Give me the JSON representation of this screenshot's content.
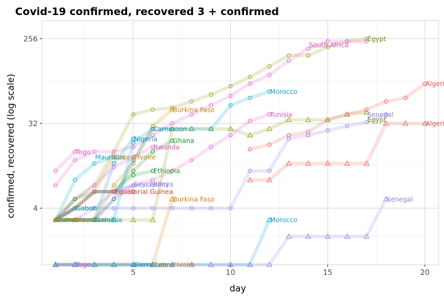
{
  "chart_data": {
    "type": "line",
    "title": "Covid-19 confirmed, recovered 3 + confirmed",
    "xlabel": "day",
    "ylabel": "confirmed, recovered (log scale)",
    "y_scale": "log2",
    "xlim": [
      0.3,
      20.7
    ],
    "ylim": [
      1,
      400
    ],
    "x_ticks": [
      5,
      10,
      15,
      20
    ],
    "y_ticks": [
      4,
      32,
      256
    ],
    "grid": true,
    "legend": "none",
    "marker_key": {
      "circle": "confirmed",
      "triangle": "recovered"
    },
    "series": [
      {
        "name": "Egypt",
        "color": "#9aaa2a",
        "kind": "confirmed",
        "x": [
          1,
          2,
          3,
          4,
          5,
          6,
          7,
          8,
          9,
          10,
          11,
          12,
          13,
          14,
          15,
          16,
          17
        ],
        "y": [
          3,
          5,
          7,
          16,
          40,
          45,
          47,
          55,
          65,
          80,
          100,
          130,
          170,
          170,
          210,
          240,
          256
        ]
      },
      {
        "name": "Egypt",
        "color": "#9aaa2a",
        "kind": "recovered",
        "x": [
          1,
          2,
          3,
          4,
          5,
          6,
          7,
          8,
          9,
          10,
          11,
          12,
          13,
          14,
          15,
          16,
          17
        ],
        "y": [
          3,
          3,
          3,
          3,
          3,
          3,
          28,
          28,
          28,
          28,
          24,
          28,
          35,
          35,
          35,
          40,
          42
        ]
      },
      {
        "name": "Algeria",
        "color": "#f07070",
        "kind": "confirmed",
        "x": [
          11,
          12,
          13,
          14,
          15,
          16,
          17,
          18,
          19,
          20
        ],
        "y": [
          17,
          19,
          24,
          26,
          35,
          40,
          45,
          55,
          60,
          85
        ]
      },
      {
        "name": "Algeria",
        "color": "#f07070",
        "kind": "recovered",
        "x": [
          11,
          12,
          13,
          14,
          15,
          16,
          17,
          18,
          19,
          20
        ],
        "y": [
          8,
          8,
          12,
          12,
          12,
          12,
          12,
          32,
          32,
          32
        ]
      },
      {
        "name": "South Africa",
        "color": "#e770d0",
        "kind": "confirmed",
        "x": [
          1,
          2,
          3,
          4,
          5,
          6,
          7,
          8,
          9,
          10,
          11,
          12,
          13,
          14,
          15,
          16,
          17
        ],
        "y": [
          7,
          13,
          16,
          16,
          18,
          24,
          32,
          40,
          50,
          63,
          85,
          105,
          150,
          200,
          240,
          240,
          240
        ]
      },
      {
        "name": "Morocco",
        "color": "#20b0d8",
        "kind": "confirmed",
        "x": [
          1,
          2,
          3,
          4,
          5,
          6,
          7,
          8,
          9,
          10,
          11,
          12
        ],
        "y": [
          3,
          3,
          3,
          3,
          20,
          28,
          28,
          28,
          28,
          50,
          60,
          70
        ]
      },
      {
        "name": "Morocco",
        "color": "#20b0d8",
        "kind": "recovered",
        "x": [
          1,
          2,
          3,
          4,
          5,
          6,
          7,
          8,
          9,
          10,
          11,
          12
        ],
        "y": [
          1,
          1,
          1,
          1,
          1,
          1,
          1,
          1,
          1,
          1,
          1,
          3
        ]
      },
      {
        "name": "Tunisia",
        "color": "#e770d0",
        "kind": "confirmed",
        "x": [
          1,
          2,
          3,
          4,
          5,
          6,
          7,
          8,
          9,
          10,
          11,
          12
        ],
        "y": [
          3,
          3,
          3,
          5,
          7,
          8,
          10,
          13,
          18,
          24,
          34,
          40
        ]
      },
      {
        "name": "Senegal",
        "color": "#9f8cf0",
        "kind": "confirmed",
        "x": [
          1,
          2,
          3,
          4,
          5,
          6,
          7,
          8,
          9,
          10,
          11,
          12,
          13,
          14,
          15,
          16,
          17,
          18
        ],
        "y": [
          3,
          4,
          4,
          4,
          4,
          4,
          4,
          4,
          4,
          4,
          10,
          10,
          22,
          24,
          27,
          30,
          33,
          40
        ]
      },
      {
        "name": "Senegal",
        "color": "#9f8cf0",
        "kind": "recovered",
        "x": [
          1,
          2,
          3,
          4,
          5,
          6,
          7,
          8,
          9,
          10,
          11,
          12,
          13,
          14,
          15,
          16,
          17,
          18
        ],
        "y": [
          1,
          1,
          1,
          1,
          1,
          1,
          1,
          1,
          1,
          1,
          1,
          1,
          2,
          2,
          2,
          2,
          2,
          5
        ]
      },
      {
        "name": "Burkina Faso",
        "color": "#d89020",
        "kind": "confirmed",
        "x": [
          1,
          2,
          3,
          4,
          5,
          6,
          7
        ],
        "y": [
          3,
          3,
          3,
          7,
          12,
          30,
          45
        ]
      },
      {
        "name": "Burkina Faso",
        "color": "#d89020",
        "kind": "recovered",
        "x": [
          1,
          2,
          3,
          4,
          5,
          6,
          7
        ],
        "y": [
          1,
          1,
          1,
          1,
          1,
          1,
          5
        ]
      },
      {
        "name": "Cameroon",
        "color": "#20a0b0",
        "kind": "confirmed",
        "x": [
          1,
          2,
          3,
          4,
          5,
          6
        ],
        "y": [
          3,
          3,
          3,
          5,
          13,
          28
        ]
      },
      {
        "name": "Nigeria",
        "color": "#20a0d8",
        "kind": "confirmed",
        "x": [
          1,
          2,
          3,
          4,
          5
        ],
        "y": [
          3,
          3,
          3,
          12,
          22
        ]
      },
      {
        "name": "Ghana",
        "color": "#30a040",
        "kind": "confirmed",
        "x": [
          1,
          2,
          3,
          4,
          5,
          6,
          7
        ],
        "y": [
          3,
          4,
          6,
          6,
          10,
          16,
          21
        ]
      },
      {
        "name": "Rwanda",
        "color": "#e770d0",
        "kind": "confirmed",
        "x": [
          1,
          2,
          3,
          4,
          5,
          6
        ],
        "y": [
          3,
          5,
          7,
          11,
          14,
          18
        ]
      },
      {
        "name": "Mauritius",
        "color": "#20b0d8",
        "kind": "confirmed",
        "x": [
          1,
          2,
          3,
          4
        ],
        "y": [
          3,
          8,
          12,
          14
        ]
      },
      {
        "name": "Cote d'Ivoire",
        "color": "#d89020",
        "kind": "confirmed",
        "x": [
          1,
          2,
          3,
          4
        ],
        "y": [
          3,
          4,
          6,
          14
        ]
      },
      {
        "name": "Ethiopia",
        "color": "#30a040",
        "kind": "confirmed",
        "x": [
          1,
          2,
          3,
          4,
          5,
          6
        ],
        "y": [
          3,
          5,
          6,
          6,
          9,
          10
        ]
      },
      {
        "name": "Seychelles",
        "color": "#9f8cf0",
        "kind": "confirmed",
        "x": [
          1,
          2,
          3,
          4,
          5
        ],
        "y": [
          3,
          4,
          6,
          6,
          7
        ]
      },
      {
        "name": "Kenya",
        "color": "#9f8cf0",
        "kind": "confirmed",
        "x": [
          1,
          2,
          3,
          4,
          5,
          6
        ],
        "y": [
          3,
          3,
          4,
          6,
          7,
          7
        ]
      },
      {
        "name": "Equatorial Guinea",
        "color": "#d85050",
        "kind": "confirmed",
        "x": [
          1,
          2,
          3,
          4,
          5
        ],
        "y": [
          3,
          4,
          6,
          6,
          6
        ]
      },
      {
        "name": "Togo",
        "color": "#e770d0",
        "kind": "confirmed",
        "x": [
          1,
          2
        ],
        "y": [
          10,
          16
        ]
      },
      {
        "name": "Togo",
        "color": "#e770d0",
        "kind": "recovered",
        "x": [
          1,
          2
        ],
        "y": [
          1,
          1
        ]
      },
      {
        "name": "Gabon",
        "color": "#20a0b0",
        "kind": "confirmed",
        "x": [
          1,
          2
        ],
        "y": [
          3,
          4
        ]
      },
      {
        "name": "Namibia",
        "color": "#20b0d8",
        "kind": "confirmed",
        "x": [
          1,
          2,
          3
        ],
        "y": [
          3,
          3,
          3
        ]
      },
      {
        "name": "Guinea",
        "color": "#9aaa2a",
        "kind": "confirmed",
        "x": [
          1,
          2
        ],
        "y": [
          3,
          3
        ]
      },
      {
        "name": "Mauritania",
        "color": "#d89020",
        "kind": "confirmed",
        "x": [
          1,
          2
        ],
        "y": [
          3,
          3
        ]
      },
      {
        "name": "Sierra Leone",
        "color": "#20a0d8",
        "kind": "recovered",
        "x": [
          1,
          2,
          3,
          4,
          5,
          6
        ],
        "y": [
          1,
          1,
          1,
          1,
          1,
          1
        ]
      }
    ],
    "labels": [
      {
        "text": "Egypt",
        "x": 17,
        "y": 256,
        "color": "#7a8a10"
      },
      {
        "text": "South Africa",
        "x": 14,
        "y": 220,
        "color": "#d850c0"
      },
      {
        "text": "Algeria",
        "x": 20,
        "y": 85,
        "color": "#e05050"
      },
      {
        "text": "Morocco",
        "x": 12,
        "y": 70,
        "color": "#10a0c8"
      },
      {
        "text": "Tunisia",
        "x": 12,
        "y": 40,
        "color": "#d850c0"
      },
      {
        "text": "Burkina Faso",
        "x": 7,
        "y": 45,
        "color": "#c88010"
      },
      {
        "text": "Senegal",
        "x": 17,
        "y": 40,
        "color": "#8f7ce0"
      },
      {
        "text": "Egypt",
        "x": 17,
        "y": 35,
        "color": "#7a8a10"
      },
      {
        "text": "Algeria",
        "x": 20,
        "y": 32,
        "color": "#e05050"
      },
      {
        "text": "Cameroon",
        "x": 6,
        "y": 28,
        "color": "#109098"
      },
      {
        "text": "Nigeria",
        "x": 5,
        "y": 22,
        "color": "#1090c8"
      },
      {
        "text": "Ghana",
        "x": 7,
        "y": 21,
        "color": "#209030"
      },
      {
        "text": "Rwanda",
        "x": 6,
        "y": 18,
        "color": "#d850c0"
      },
      {
        "text": "Togo",
        "x": 2,
        "y": 16,
        "color": "#d850c0"
      },
      {
        "text": "Mauritius",
        "x": 3,
        "y": 14,
        "color": "#10a0c8"
      },
      {
        "text": "Cote d'Ivoire",
        "x": 4,
        "y": 14,
        "color": "#c88010"
      },
      {
        "text": "Ethiopia",
        "x": 6,
        "y": 10,
        "color": "#209030"
      },
      {
        "text": "Seychelles",
        "x": 5,
        "y": 7.2,
        "color": "#8f7ce0"
      },
      {
        "text": "Kenya",
        "x": 6,
        "y": 7.2,
        "color": "#8f7ce0"
      },
      {
        "text": "Equatorial Guinea",
        "x": 4,
        "y": 6,
        "color": "#c84040"
      },
      {
        "text": "Burkina Faso",
        "x": 7,
        "y": 5,
        "color": "#c88010"
      },
      {
        "text": "Senegal",
        "x": 18,
        "y": 5,
        "color": "#8f7ce0"
      },
      {
        "text": "Gabon",
        "x": 2,
        "y": 4,
        "color": "#109098"
      },
      {
        "text": "Guinea",
        "x": 1,
        "y": 3,
        "color": "#7a8a10"
      },
      {
        "text": "Mauritania",
        "x": 2,
        "y": 3,
        "color": "#c88010"
      },
      {
        "text": "Namibia",
        "x": 3,
        "y": 3,
        "color": "#10a0c8"
      },
      {
        "text": "Morocco",
        "x": 12,
        "y": 3,
        "color": "#10a0c8"
      },
      {
        "text": "Togo",
        "x": 2,
        "y": 1,
        "color": "#d850c0"
      },
      {
        "text": "Sierra Leone",
        "x": 5,
        "y": 1,
        "color": "#1090c8"
      },
      {
        "text": "Cote d'Ivoire",
        "x": 6,
        "y": 1,
        "color": "#c88010"
      }
    ]
  }
}
